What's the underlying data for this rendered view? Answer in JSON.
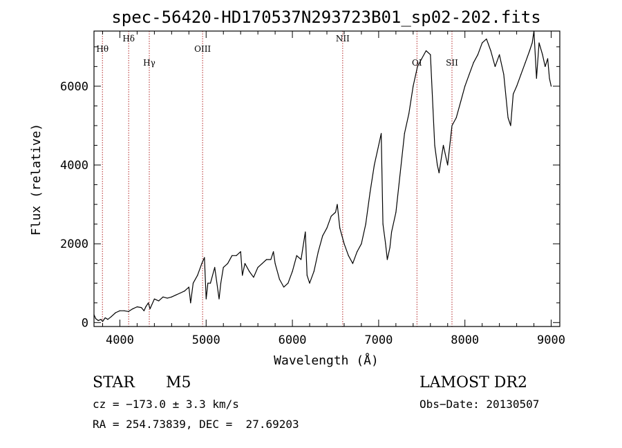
{
  "chart_data": {
    "type": "line",
    "title": "spec-56420-HD170537N293723B01_sp02-202.fits",
    "xlabel": "Wavelength (Å)",
    "ylabel": "Flux (relative)",
    "xlim": [
      3700,
      9100
    ],
    "ylim": [
      -100,
      7400
    ],
    "xticks": [
      4000,
      5000,
      6000,
      7000,
      8000,
      9000
    ],
    "yticks": [
      0,
      2000,
      4000,
      6000
    ],
    "series": [
      {
        "name": "flux",
        "x": [
          3700,
          3720,
          3750,
          3780,
          3800,
          3830,
          3860,
          3900,
          3950,
          4000,
          4050,
          4100,
          4150,
          4200,
          4250,
          4280,
          4300,
          4330,
          4350,
          4400,
          4450,
          4500,
          4550,
          4600,
          4650,
          4700,
          4750,
          4800,
          4820,
          4850,
          4900,
          4950,
          4980,
          5000,
          5020,
          5050,
          5100,
          5150,
          5170,
          5200,
          5250,
          5300,
          5350,
          5400,
          5420,
          5450,
          5500,
          5550,
          5600,
          5650,
          5700,
          5750,
          5780,
          5800,
          5850,
          5900,
          5950,
          6000,
          6050,
          6100,
          6150,
          6170,
          6200,
          6250,
          6300,
          6350,
          6400,
          6450,
          6500,
          6520,
          6550,
          6600,
          6650,
          6700,
          6750,
          6800,
          6850,
          6900,
          6950,
          7000,
          7030,
          7050,
          7080,
          7100,
          7130,
          7150,
          7200,
          7250,
          7300,
          7350,
          7400,
          7450,
          7500,
          7550,
          7600,
          7650,
          7680,
          7700,
          7750,
          7800,
          7850,
          7900,
          7950,
          8000,
          8050,
          8100,
          8150,
          8200,
          8250,
          8300,
          8350,
          8400,
          8450,
          8500,
          8530,
          8560,
          8600,
          8650,
          8700,
          8750,
          8780,
          8800,
          8830,
          8860,
          8900,
          8930,
          8960,
          8980,
          9000
        ],
        "values": [
          200,
          100,
          50,
          80,
          30,
          120,
          80,
          150,
          250,
          300,
          300,
          280,
          350,
          400,
          380,
          300,
          400,
          500,
          350,
          600,
          550,
          650,
          620,
          650,
          700,
          750,
          800,
          900,
          500,
          1000,
          1200,
          1500,
          1650,
          600,
          1000,
          1000,
          1400,
          600,
          1000,
          1400,
          1500,
          1700,
          1700,
          1800,
          1200,
          1500,
          1300,
          1150,
          1400,
          1500,
          1600,
          1600,
          1800,
          1500,
          1100,
          900,
          1000,
          1300,
          1700,
          1600,
          2300,
          1200,
          1000,
          1300,
          1800,
          2200,
          2400,
          2700,
          2800,
          3000,
          2400,
          2000,
          1700,
          1500,
          1800,
          2000,
          2500,
          3300,
          4000,
          4500,
          4800,
          2500,
          2000,
          1600,
          1900,
          2300,
          2800,
          3800,
          4800,
          5300,
          6000,
          6500,
          6700,
          6900,
          6800,
          4500,
          4000,
          3800,
          4500,
          4000,
          5000,
          5200,
          5600,
          6000,
          6300,
          6600,
          6800,
          7100,
          7200,
          6900,
          6500,
          6800,
          6300,
          5200,
          5000,
          5800,
          6000,
          6300,
          6600,
          6900,
          7100,
          7400,
          6200,
          7100,
          6800,
          6500,
          6700,
          6200,
          6000
        ]
      }
    ],
    "lines": [
      {
        "label": "Hθ",
        "x": 3798
      },
      {
        "label": "Hδ",
        "x": 4102
      },
      {
        "label": "Hγ",
        "x": 4341
      },
      {
        "label": "OIII",
        "x": 4959
      },
      {
        "label": "NII",
        "x": 6583
      },
      {
        "label": "OI",
        "x": 7444
      },
      {
        "label": "SII",
        "x": 7850
      }
    ]
  },
  "info": {
    "object_type": "STAR",
    "subclass": "M5",
    "survey": "LAMOST DR2",
    "cz": "cz = −173.0 ± 3.3 km/s",
    "obs_date": "Obs−Date: 20130507",
    "coords": "RA = 254.73839, DEC =  27.69203"
  },
  "colors": {
    "line": "#000000",
    "marker": "#b22222"
  }
}
